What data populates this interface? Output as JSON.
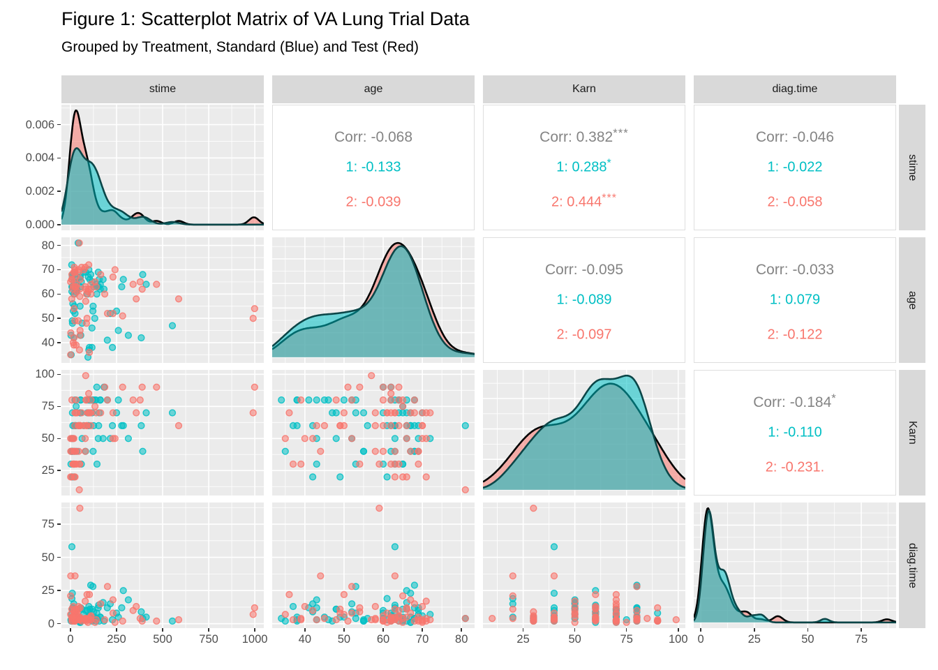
{
  "title": "Figure 1: Scatterplot Matrix of VA Lung Trial Data",
  "subtitle": "Grouped by Treatment, Standard (Blue) and Test (Red)",
  "colors": {
    "group1": "#00BFC4",
    "group2": "#F8766D",
    "group1_stroke": "#0b4648",
    "group2_stroke": "#000000",
    "corr_text": "#848484",
    "panel_bg": "#EBEBEB",
    "grid_line": "#FFFFFF",
    "strip_bg": "#D9D9D9",
    "axis_text": "#4d4d4d",
    "tick_mark": "#333333"
  },
  "strips": {
    "top": [
      "stime",
      "age",
      "Karn",
      "diag.time"
    ],
    "right": [
      "stime",
      "age",
      "Karn",
      "diag.time"
    ]
  },
  "axes": {
    "bottom": [
      {
        "labels": [
          "0",
          "250",
          "500",
          "750",
          "1000"
        ],
        "values": [
          0,
          250,
          500,
          750,
          1000
        ]
      },
      {
        "labels": [
          "40",
          "50",
          "60",
          "70",
          "80"
        ],
        "values": [
          40,
          50,
          60,
          70,
          80
        ]
      },
      {
        "labels": [
          "25",
          "50",
          "75",
          "100"
        ],
        "values": [
          25,
          50,
          75,
          100
        ]
      },
      {
        "labels": [
          "0",
          "25",
          "50",
          "75"
        ],
        "values": [
          0,
          25,
          50,
          75
        ]
      }
    ],
    "left": [
      {
        "labels": [
          "0.000",
          "0.002",
          "0.004",
          "0.006"
        ],
        "values": [
          0,
          0.002,
          0.004,
          0.006
        ],
        "scale": "density"
      },
      {
        "labels": [
          "40",
          "50",
          "60",
          "70",
          "80"
        ],
        "values": [
          40,
          50,
          60,
          70,
          80
        ],
        "scale": "data"
      },
      {
        "labels": [
          "25",
          "50",
          "75",
          "100"
        ],
        "values": [
          25,
          50,
          75,
          100
        ],
        "scale": "data"
      },
      {
        "labels": [
          "0",
          "25",
          "50",
          "75"
        ],
        "values": [
          0,
          25,
          50,
          75
        ],
        "scale": "data"
      }
    ]
  },
  "corr": {
    "r0c1": {
      "all": "Corr: -0.068",
      "all_stars": "",
      "g1": "1: -0.133",
      "g1_stars": "",
      "g2": "2: -0.039",
      "g2_stars": ""
    },
    "r0c2": {
      "all": "Corr: 0.382",
      "all_stars": "***",
      "g1": "1: 0.288",
      "g1_stars": "*",
      "g2": "2: 0.444",
      "g2_stars": "***"
    },
    "r0c3": {
      "all": "Corr: -0.046",
      "all_stars": "",
      "g1": "1: -0.022",
      "g1_stars": "",
      "g2": "2: -0.058",
      "g2_stars": ""
    },
    "r1c2": {
      "all": "Corr: -0.095",
      "all_stars": "",
      "g1": "1: -0.089",
      "g1_stars": "",
      "g2": "2: -0.097",
      "g2_stars": ""
    },
    "r1c3": {
      "all": "Corr: -0.033",
      "all_stars": "",
      "g1": "1: 0.079",
      "g1_stars": "",
      "g2": "2: -0.122",
      "g2_stars": ""
    },
    "r2c3": {
      "all": "Corr: -0.184",
      "all_stars": "*",
      "g1": "1: -0.110",
      "g1_stars": "",
      "g2": "2: -0.231.",
      "g2_stars": ""
    }
  },
  "chart_data": {
    "type": "scatterplot-matrix",
    "variables": [
      "stime",
      "age",
      "Karn",
      "diag.time"
    ],
    "diagonal": "density",
    "upper": "correlation",
    "lower": "scatter",
    "groups": {
      "1": {
        "name": "Standard",
        "color": "#00BFC4"
      },
      "2": {
        "name": "Test",
        "color": "#F8766D"
      }
    },
    "observations": {
      "columns": [
        "stime",
        "age",
        "Karn",
        "diag.time",
        "treat"
      ],
      "rows": [
        [
          72,
          69,
          60,
          7,
          1
        ],
        [
          411,
          64,
          70,
          5,
          1
        ],
        [
          228,
          38,
          60,
          3,
          1
        ],
        [
          126,
          63,
          60,
          9,
          1
        ],
        [
          118,
          65,
          70,
          11,
          1
        ],
        [
          10,
          49,
          20,
          5,
          1
        ],
        [
          82,
          69,
          40,
          10,
          1
        ],
        [
          110,
          68,
          80,
          29,
          1
        ],
        [
          314,
          43,
          50,
          18,
          1
        ],
        [
          100,
          70,
          70,
          6,
          1
        ],
        [
          42,
          81,
          60,
          4,
          1
        ],
        [
          8,
          63,
          40,
          58,
          1
        ],
        [
          144,
          63,
          30,
          4,
          1
        ],
        [
          25,
          52,
          80,
          9,
          1
        ],
        [
          11,
          48,
          70,
          11,
          1
        ],
        [
          30,
          61,
          60,
          3,
          1
        ],
        [
          384,
          42,
          60,
          9,
          1
        ],
        [
          4,
          35,
          40,
          2,
          1
        ],
        [
          54,
          63,
          80,
          4,
          1
        ],
        [
          13,
          56,
          60,
          4,
          1
        ],
        [
          123,
          55,
          40,
          3,
          1
        ],
        [
          97,
          67,
          60,
          5,
          1
        ],
        [
          153,
          63,
          60,
          14,
          1
        ],
        [
          59,
          65,
          30,
          2,
          1
        ],
        [
          117,
          46,
          80,
          3,
          1
        ],
        [
          16,
          53,
          30,
          4,
          1
        ],
        [
          151,
          69,
          50,
          12,
          1
        ],
        [
          22,
          68,
          60,
          4,
          1
        ],
        [
          56,
          43,
          80,
          12,
          1
        ],
        [
          21,
          55,
          40,
          2,
          1
        ],
        [
          18,
          42,
          20,
          15,
          1
        ],
        [
          139,
          64,
          80,
          2,
          1
        ],
        [
          20,
          65,
          30,
          5,
          1
        ],
        [
          31,
          65,
          75,
          3,
          1
        ],
        [
          52,
          55,
          70,
          2,
          1
        ],
        [
          287,
          66,
          60,
          25,
          1
        ],
        [
          18,
          60,
          30,
          4,
          1
        ],
        [
          51,
          67,
          60,
          1,
          1
        ],
        [
          122,
          53,
          80,
          28,
          1
        ],
        [
          27,
          62,
          60,
          8,
          1
        ],
        [
          54,
          67,
          70,
          1,
          1
        ],
        [
          7,
          72,
          50,
          7,
          1
        ],
        [
          63,
          48,
          50,
          11,
          1
        ],
        [
          392,
          68,
          40,
          4,
          1
        ],
        [
          10,
          67,
          40,
          23,
          1
        ],
        [
          8,
          61,
          20,
          19,
          1
        ],
        [
          92,
          60,
          70,
          10,
          1
        ],
        [
          35,
          62,
          40,
          6,
          1
        ],
        [
          117,
          38,
          80,
          2,
          1
        ],
        [
          132,
          50,
          80,
          5,
          1
        ],
        [
          12,
          63,
          50,
          4,
          1
        ],
        [
          162,
          64,
          80,
          5,
          1
        ],
        [
          3,
          43,
          30,
          3,
          1
        ],
        [
          95,
          34,
          80,
          4,
          1
        ],
        [
          177,
          66,
          50,
          16,
          1
        ],
        [
          162,
          62,
          80,
          5,
          1
        ],
        [
          216,
          52,
          50,
          15,
          1
        ],
        [
          553,
          47,
          70,
          2,
          1
        ],
        [
          278,
          63,
          60,
          12,
          1
        ],
        [
          12,
          68,
          40,
          12,
          1
        ],
        [
          260,
          45,
          80,
          5,
          1
        ],
        [
          200,
          41,
          80,
          12,
          1
        ],
        [
          156,
          66,
          70,
          2,
          1
        ],
        [
          182,
          62,
          90,
          2,
          1
        ],
        [
          143,
          60,
          90,
          8,
          1
        ],
        [
          105,
          66,
          80,
          11,
          1
        ],
        [
          103,
          38,
          80,
          5,
          1
        ],
        [
          250,
          53,
          70,
          8,
          1
        ],
        [
          100,
          37,
          60,
          13,
          1
        ],
        [
          999,
          54,
          90,
          12,
          2
        ],
        [
          112,
          60,
          80,
          6,
          2
        ],
        [
          87,
          48,
          80,
          3,
          2
        ],
        [
          231,
          52,
          50,
          8,
          2
        ],
        [
          242,
          70,
          50,
          1,
          2
        ],
        [
          991,
          50,
          70,
          7,
          2
        ],
        [
          111,
          62,
          70,
          3,
          2
        ],
        [
          1,
          65,
          20,
          21,
          2
        ],
        [
          587,
          58,
          60,
          3,
          2
        ],
        [
          389,
          62,
          90,
          2,
          2
        ],
        [
          33,
          64,
          30,
          6,
          2
        ],
        [
          25,
          63,
          20,
          36,
          2
        ],
        [
          357,
          58,
          70,
          13,
          2
        ],
        [
          467,
          64,
          90,
          2,
          2
        ],
        [
          201,
          52,
          80,
          28,
          2
        ],
        [
          1,
          35,
          50,
          7,
          2
        ],
        [
          30,
          63,
          70,
          11,
          2
        ],
        [
          44,
          70,
          60,
          13,
          2
        ],
        [
          283,
          51,
          90,
          2,
          2
        ],
        [
          15,
          40,
          50,
          13,
          2
        ],
        [
          25,
          69,
          30,
          2,
          2
        ],
        [
          103,
          36,
          70,
          22,
          2
        ],
        [
          21,
          71,
          20,
          4,
          2
        ],
        [
          13,
          62,
          30,
          2,
          2
        ],
        [
          87,
          60,
          60,
          2,
          2
        ],
        [
          2,
          44,
          40,
          36,
          2
        ],
        [
          20,
          54,
          30,
          9,
          2
        ],
        [
          7,
          66,
          20,
          11,
          2
        ],
        [
          24,
          49,
          60,
          8,
          2
        ],
        [
          99,
          72,
          70,
          3,
          2
        ],
        [
          8,
          68,
          80,
          2,
          2
        ],
        [
          99,
          62,
          85,
          4,
          2
        ],
        [
          61,
          71,
          70,
          2,
          2
        ],
        [
          25,
          70,
          70,
          2,
          2
        ],
        [
          95,
          61,
          70,
          1,
          2
        ],
        [
          80,
          71,
          50,
          17,
          2
        ],
        [
          51,
          59,
          30,
          87,
          2
        ],
        [
          29,
          67,
          40,
          8,
          2
        ],
        [
          24,
          60,
          40,
          2,
          2
        ],
        [
          18,
          69,
          40,
          5,
          2
        ],
        [
          83,
          57,
          99,
          3,
          2
        ],
        [
          31,
          39,
          80,
          3,
          2
        ],
        [
          51,
          62,
          60,
          5,
          2
        ],
        [
          90,
          50,
          60,
          22,
          2
        ],
        [
          52,
          43,
          60,
          3,
          2
        ],
        [
          73,
          70,
          60,
          3,
          2
        ],
        [
          8,
          66,
          50,
          5,
          2
        ],
        [
          36,
          61,
          70,
          8,
          2
        ],
        [
          48,
          81,
          10,
          4,
          2
        ],
        [
          7,
          58,
          40,
          4,
          2
        ],
        [
          140,
          63,
          70,
          3,
          2
        ],
        [
          186,
          60,
          90,
          3,
          2
        ],
        [
          84,
          62,
          80,
          4,
          2
        ],
        [
          19,
          42,
          50,
          10,
          2
        ],
        [
          45,
          69,
          40,
          3,
          2
        ],
        [
          80,
          63,
          40,
          4,
          2
        ],
        [
          52,
          45,
          60,
          4,
          2
        ],
        [
          164,
          68,
          70,
          15,
          2
        ],
        [
          19,
          39,
          30,
          4,
          2
        ],
        [
          53,
          66,
          60,
          12,
          2
        ],
        [
          15,
          63,
          30,
          5,
          2
        ],
        [
          43,
          49,
          60,
          11,
          2
        ],
        [
          340,
          64,
          80,
          10,
          2
        ],
        [
          133,
          65,
          75,
          1,
          2
        ],
        [
          111,
          64,
          60,
          5,
          2
        ],
        [
          231,
          67,
          70,
          18,
          2
        ],
        [
          378,
          65,
          80,
          4,
          2
        ],
        [
          49,
          37,
          30,
          3,
          2
        ]
      ]
    }
  }
}
